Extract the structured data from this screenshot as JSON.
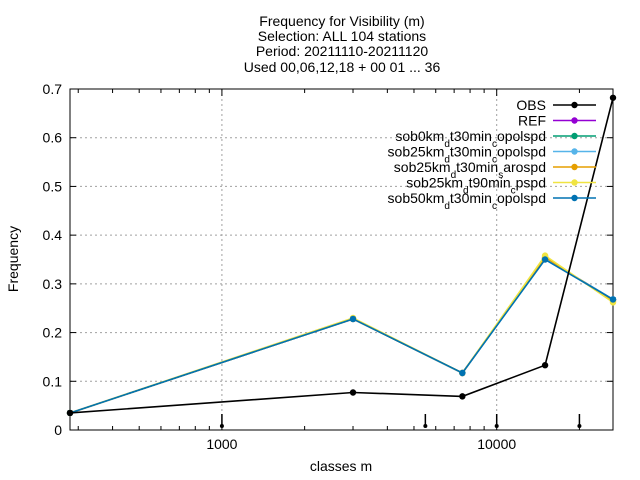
{
  "chart_data": {
    "type": "line",
    "title_lines": [
      "Frequency  for Visibility (m)",
      "Selection: ALL    104 stations",
      "Period: 20211110-20211120",
      "Used 00,06,12,18 + 00 01 ... 36"
    ],
    "xlabel": "classes m",
    "ylabel": "Frequency",
    "x_scale": "log",
    "xlim": [
      280,
      26500
    ],
    "ylim": [
      0,
      0.7
    ],
    "x_ticks": [
      1000,
      10000
    ],
    "x_tick_labels": [
      "1000",
      "10000"
    ],
    "y_ticks": [
      0,
      0.1,
      0.2,
      0.3,
      0.4,
      0.5,
      0.6,
      0.7
    ],
    "y_tick_labels": [
      "0",
      "0.1",
      "0.2",
      "0.3",
      "0.4",
      "0.5",
      "0.6",
      "0.7"
    ],
    "grid": true,
    "legend_position": "top-right",
    "x": [
      280,
      3000,
      7500,
      15000,
      26500
    ],
    "markers_x": [
      1000,
      5500,
      10000,
      20000
    ],
    "series": [
      {
        "name": "OBS",
        "name_parts": [
          [
            "OBS",
            ""
          ]
        ],
        "color": "#000000",
        "values": [
          0.035,
          0.077,
          0.069,
          0.133,
          0.682
        ]
      },
      {
        "name": "REF",
        "name_parts": [
          [
            "REF",
            ""
          ]
        ],
        "color": "#9400d3",
        "values": [
          0.035,
          0.228,
          0.117,
          0.352,
          0.268
        ]
      },
      {
        "name": "sob0km_dt30min_copolspd",
        "name_parts": [
          [
            "sob0km",
            ""
          ],
          [
            "d",
            "sub"
          ],
          [
            "t30min",
            ""
          ],
          [
            "c",
            "sub"
          ],
          [
            "opolspd",
            ""
          ]
        ],
        "color": "#009e73",
        "values": [
          0.035,
          0.228,
          0.117,
          0.352,
          0.268
        ]
      },
      {
        "name": "sob25km_dt30min_copolspd",
        "name_parts": [
          [
            "sob25km",
            ""
          ],
          [
            "d",
            "sub"
          ],
          [
            "t30min",
            ""
          ],
          [
            "c",
            "sub"
          ],
          [
            "opolspd",
            ""
          ]
        ],
        "color": "#56b4e9",
        "values": [
          0.035,
          0.228,
          0.117,
          0.352,
          0.268
        ]
      },
      {
        "name": "sob25km_dt30min_sarospd",
        "name_parts": [
          [
            "sob25km",
            ""
          ],
          [
            "d",
            "sub"
          ],
          [
            "t30min",
            ""
          ],
          [
            "s",
            "sub"
          ],
          [
            "arospd",
            ""
          ]
        ],
        "color": "#e69f00",
        "values": [
          0.035,
          0.228,
          0.117,
          0.355,
          0.265
        ]
      },
      {
        "name": "sob25km_dt90min_cpspd",
        "name_parts": [
          [
            "sob25km",
            ""
          ],
          [
            "d",
            "sub"
          ],
          [
            "t90min",
            ""
          ],
          [
            "c",
            "sub"
          ],
          [
            "pspd",
            ""
          ]
        ],
        "color": "#f0e442",
        "values": [
          0.035,
          0.23,
          0.117,
          0.358,
          0.262
        ]
      },
      {
        "name": "sob50km_dt30min_copolspd",
        "name_parts": [
          [
            "sob50km",
            ""
          ],
          [
            "d",
            "sub"
          ],
          [
            "t30min",
            ""
          ],
          [
            "c",
            "sub"
          ],
          [
            "opolspd",
            ""
          ]
        ],
        "color": "#0072b2",
        "values": [
          0.035,
          0.228,
          0.117,
          0.35,
          0.268
        ]
      }
    ]
  }
}
